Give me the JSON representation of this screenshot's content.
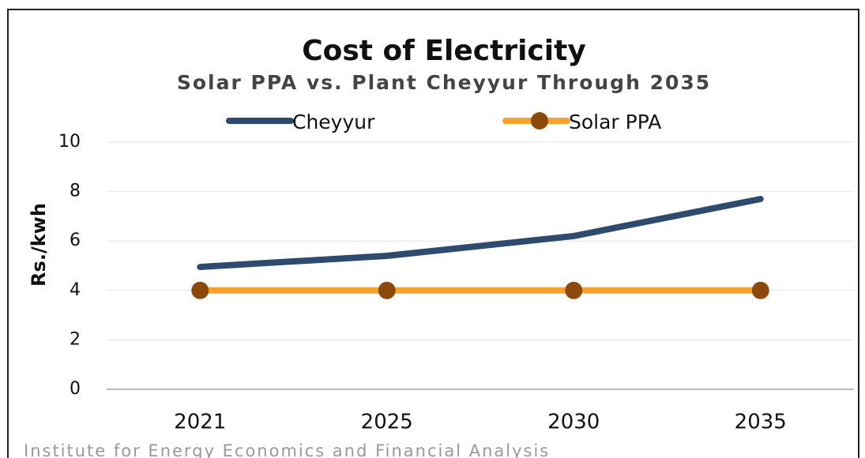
{
  "chart_data": {
    "type": "line",
    "title": "Cost of Electricity",
    "subtitle": "Solar PPA vs. Plant Cheyyur Through 2035",
    "y_label": "Rs./kwh",
    "source": "Institute for Energy Economics and Financial Analysis",
    "categories": [
      "2021",
      "2025",
      "2030",
      "2035"
    ],
    "series": [
      {
        "name": "Cheyyur",
        "color": "#2e4a6e",
        "values": [
          4.95,
          5.4,
          6.2,
          7.7
        ]
      },
      {
        "name": "Solar PPA",
        "color": "#f5a22e",
        "marker_color": "#8b4a0c",
        "values": [
          4,
          4,
          4,
          4
        ]
      }
    ],
    "ylim": [
      0,
      10
    ],
    "yticks": [
      0,
      2,
      4,
      6,
      8,
      10
    ],
    "grid": true
  }
}
